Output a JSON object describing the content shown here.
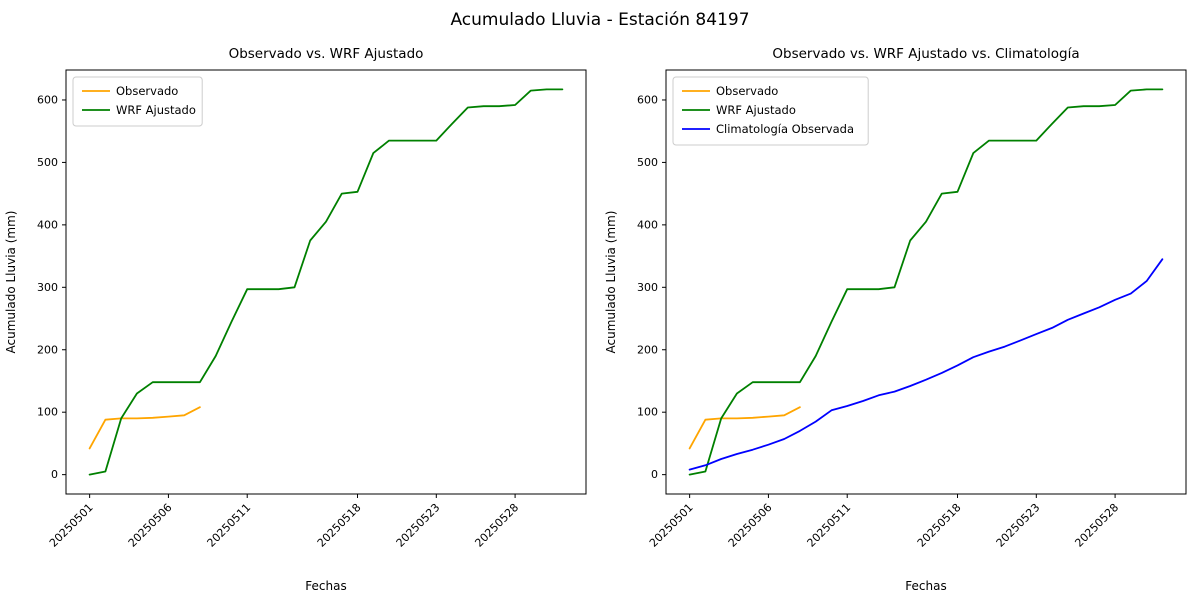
{
  "figure": {
    "suptitle": "Acumulado Lluvia - Estación 84197",
    "background": "#ffffff"
  },
  "colors": {
    "observado": "#ffa500",
    "wrf_ajustado": "#008000",
    "climatologia": "#0000ff",
    "axis": "#000000",
    "legend_border": "#cccccc"
  },
  "chart_data": [
    {
      "type": "line",
      "title": "Observado vs. WRF Ajustado",
      "xlabel": "Fechas",
      "ylabel": "Acumulado Lluvia (mm)",
      "ylim": [
        -31,
        648
      ],
      "yticks": [
        0,
        100,
        200,
        300,
        400,
        500,
        600
      ],
      "legend_position": "upper left",
      "grid": false,
      "x": [
        "20250501",
        "20250502",
        "20250503",
        "20250504",
        "20250505",
        "20250506",
        "20250507",
        "20250508",
        "20250509",
        "20250510",
        "20250511",
        "20250512",
        "20250513",
        "20250514",
        "20250515",
        "20250516",
        "20250517",
        "20250518",
        "20250519",
        "20250520",
        "20250521",
        "20250522",
        "20250523",
        "20250524",
        "20250525",
        "20250526",
        "20250527",
        "20250528",
        "20250529",
        "20250530",
        "20250531"
      ],
      "xticks": [
        {
          "i": 0,
          "label": "20250501"
        },
        {
          "i": 5,
          "label": "20250506"
        },
        {
          "i": 10,
          "label": "20250511"
        },
        {
          "i": 17,
          "label": "20250518"
        },
        {
          "i": 22,
          "label": "20250523"
        },
        {
          "i": 27,
          "label": "20250528"
        }
      ],
      "series": [
        {
          "name": "Observado",
          "color": "#ffa500",
          "values": [
            42,
            88,
            90,
            90,
            91,
            93,
            95,
            108,
            null,
            null,
            null,
            null,
            null,
            null,
            null,
            null,
            null,
            null,
            null,
            null,
            null,
            null,
            null,
            null,
            null,
            null,
            null,
            null,
            null,
            null,
            null
          ]
        },
        {
          "name": "WRF Ajustado",
          "color": "#008000",
          "values": [
            0,
            5,
            90,
            130,
            148,
            148,
            148,
            148,
            190,
            245,
            297,
            297,
            297,
            300,
            375,
            405,
            450,
            453,
            515,
            535,
            535,
            535,
            535,
            562,
            588,
            590,
            590,
            592,
            615,
            617,
            617
          ]
        }
      ]
    },
    {
      "type": "line",
      "title": "Observado vs. WRF Ajustado vs. Climatología",
      "xlabel": "Fechas",
      "ylabel": "Acumulado Lluvia (mm)",
      "ylim": [
        -31,
        648
      ],
      "yticks": [
        0,
        100,
        200,
        300,
        400,
        500,
        600
      ],
      "legend_position": "upper left",
      "grid": false,
      "x": [
        "20250501",
        "20250502",
        "20250503",
        "20250504",
        "20250505",
        "20250506",
        "20250507",
        "20250508",
        "20250509",
        "20250510",
        "20250511",
        "20250512",
        "20250513",
        "20250514",
        "20250515",
        "20250516",
        "20250517",
        "20250518",
        "20250519",
        "20250520",
        "20250521",
        "20250522",
        "20250523",
        "20250524",
        "20250525",
        "20250526",
        "20250527",
        "20250528",
        "20250529",
        "20250530",
        "20250531"
      ],
      "xticks": [
        {
          "i": 0,
          "label": "20250501"
        },
        {
          "i": 5,
          "label": "20250506"
        },
        {
          "i": 10,
          "label": "20250511"
        },
        {
          "i": 17,
          "label": "20250518"
        },
        {
          "i": 22,
          "label": "20250523"
        },
        {
          "i": 27,
          "label": "20250528"
        }
      ],
      "series": [
        {
          "name": "Observado",
          "color": "#ffa500",
          "values": [
            42,
            88,
            90,
            90,
            91,
            93,
            95,
            108,
            null,
            null,
            null,
            null,
            null,
            null,
            null,
            null,
            null,
            null,
            null,
            null,
            null,
            null,
            null,
            null,
            null,
            null,
            null,
            null,
            null,
            null,
            null
          ]
        },
        {
          "name": "WRF Ajustado",
          "color": "#008000",
          "values": [
            0,
            5,
            90,
            130,
            148,
            148,
            148,
            148,
            190,
            245,
            297,
            297,
            297,
            300,
            375,
            405,
            450,
            453,
            515,
            535,
            535,
            535,
            535,
            562,
            588,
            590,
            590,
            592,
            615,
            617,
            617
          ]
        },
        {
          "name": "Climatología Observada",
          "color": "#0000ff",
          "values": [
            8,
            15,
            25,
            33,
            40,
            48,
            57,
            70,
            85,
            103,
            110,
            118,
            127,
            133,
            142,
            152,
            163,
            175,
            188,
            197,
            205,
            215,
            225,
            235,
            248,
            258,
            268,
            280,
            290,
            310,
            345
          ]
        }
      ]
    }
  ]
}
